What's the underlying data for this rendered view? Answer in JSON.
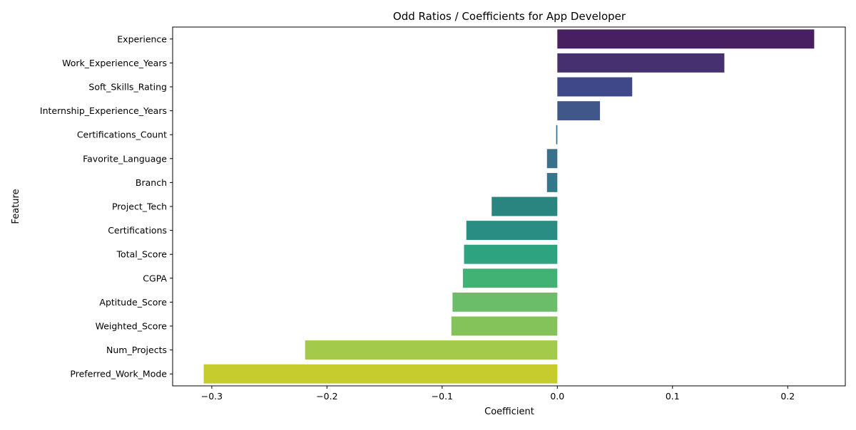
{
  "chart_data": {
    "type": "bar",
    "orientation": "horizontal",
    "title": "Odd Ratios / Coefficients for App Developer",
    "xlabel": "Coefficient",
    "ylabel": "Feature",
    "xlim": [
      -0.334,
      0.25
    ],
    "xticks": [
      -0.3,
      -0.2,
      -0.1,
      0.0,
      0.1,
      0.2
    ],
    "xtick_labels": [
      "−0.3",
      "−0.2",
      "−0.1",
      "0.0",
      "0.1",
      "0.2"
    ],
    "grid": false,
    "categories": [
      "Experience",
      "Work_Experience_Years",
      "Soft_Skills_Rating",
      "Internship_Experience_Years",
      "Certifications_Count",
      "Favorite_Language",
      "Branch",
      "Project_Tech",
      "Certifications",
      "Total_Score",
      "CGPA",
      "Aptitude_Score",
      "Weighted_Score",
      "Num_Projects",
      "Preferred_Work_Mode"
    ],
    "values": [
      0.223,
      0.145,
      0.065,
      0.037,
      -0.001,
      -0.009,
      -0.009,
      -0.057,
      -0.079,
      -0.081,
      -0.082,
      -0.091,
      -0.092,
      -0.219,
      -0.307
    ],
    "colors": [
      "#481f61",
      "#46306f",
      "#3f4989",
      "#3f5789",
      "#32678c",
      "#39708a",
      "#33788a",
      "#2a8480",
      "#2a8d83",
      "#2ea37f",
      "#42b274",
      "#6bbd69",
      "#84c359",
      "#a3ca4b",
      "#c6cb2e"
    ]
  }
}
